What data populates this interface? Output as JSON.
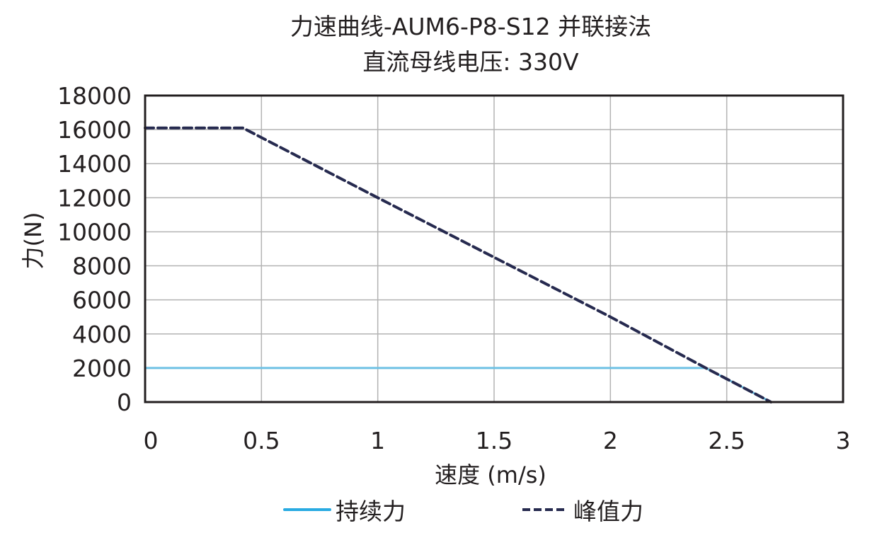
{
  "chart_data": {
    "type": "line",
    "title": "力速曲线-AUM6-P8-S12 并联接法",
    "subtitle": "直流母线电压: 330V",
    "xlabel": "速度 (m/s)",
    "ylabel": "力(N)",
    "xlim": [
      0,
      3
    ],
    "ylim": [
      0,
      18000
    ],
    "xticks": [
      "0",
      "0.5",
      "1",
      "1.5",
      "2",
      "2.5",
      "3"
    ],
    "yticks": [
      "0",
      "2000",
      "4000",
      "6000",
      "8000",
      "10000",
      "12000",
      "14000",
      "16000",
      "18000"
    ],
    "grid": true,
    "legend_position": "bottom",
    "series": [
      {
        "name": "持续力",
        "style": "solid",
        "color": "#29ABE2",
        "points": [
          [
            0,
            2000
          ],
          [
            2.41,
            2000
          ],
          [
            2.69,
            0
          ]
        ]
      },
      {
        "name": "峰值力",
        "style": "dashed",
        "color": "#262A4F",
        "points": [
          [
            0,
            16100
          ],
          [
            0.42,
            16100
          ],
          [
            1.0,
            12000
          ],
          [
            2.0,
            5000
          ],
          [
            2.41,
            2000
          ],
          [
            2.69,
            0
          ]
        ]
      }
    ]
  },
  "legend": {
    "continuous": "持续力",
    "peak": "峰值力"
  }
}
